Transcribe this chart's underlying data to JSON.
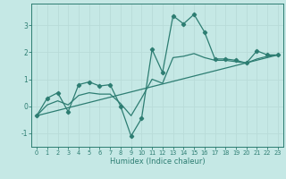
{
  "xlabel": "Humidex (Indice chaleur)",
  "xlim": [
    -0.5,
    23.5
  ],
  "ylim": [
    -1.5,
    3.8
  ],
  "yticks": [
    -1,
    0,
    1,
    2,
    3
  ],
  "xticks": [
    0,
    1,
    2,
    3,
    4,
    5,
    6,
    7,
    8,
    9,
    10,
    11,
    12,
    13,
    14,
    15,
    16,
    17,
    18,
    19,
    20,
    21,
    22,
    23
  ],
  "background_color": "#c5e8e5",
  "grid_color": "#d8f0ee",
  "line_color": "#2d7d72",
  "line1_x": [
    0,
    1,
    2,
    3,
    4,
    5,
    6,
    7,
    8,
    9,
    10,
    11,
    12,
    13,
    14,
    15,
    16,
    17,
    18,
    19,
    20,
    21,
    22,
    23
  ],
  "line1_y": [
    -0.35,
    0.3,
    0.5,
    -0.2,
    0.8,
    0.9,
    0.75,
    0.8,
    0.0,
    -1.1,
    -0.45,
    2.1,
    1.25,
    3.35,
    3.05,
    3.4,
    2.75,
    1.75,
    1.75,
    1.7,
    1.6,
    2.05,
    1.9,
    1.9
  ],
  "trend_x": [
    0,
    23
  ],
  "trend_y": [
    -0.35,
    1.9
  ],
  "line3_x": [
    0,
    1,
    2,
    3,
    4,
    5,
    6,
    7,
    8,
    9,
    10,
    11,
    12,
    13,
    14,
    15,
    16,
    17,
    18,
    19,
    20,
    21,
    22,
    23
  ],
  "line3_y": [
    -0.35,
    0.05,
    0.2,
    0.05,
    0.4,
    0.5,
    0.45,
    0.45,
    0.1,
    -0.35,
    0.3,
    1.0,
    0.85,
    1.8,
    1.85,
    1.95,
    1.8,
    1.7,
    1.7,
    1.65,
    1.6,
    1.75,
    1.85,
    1.9
  ]
}
